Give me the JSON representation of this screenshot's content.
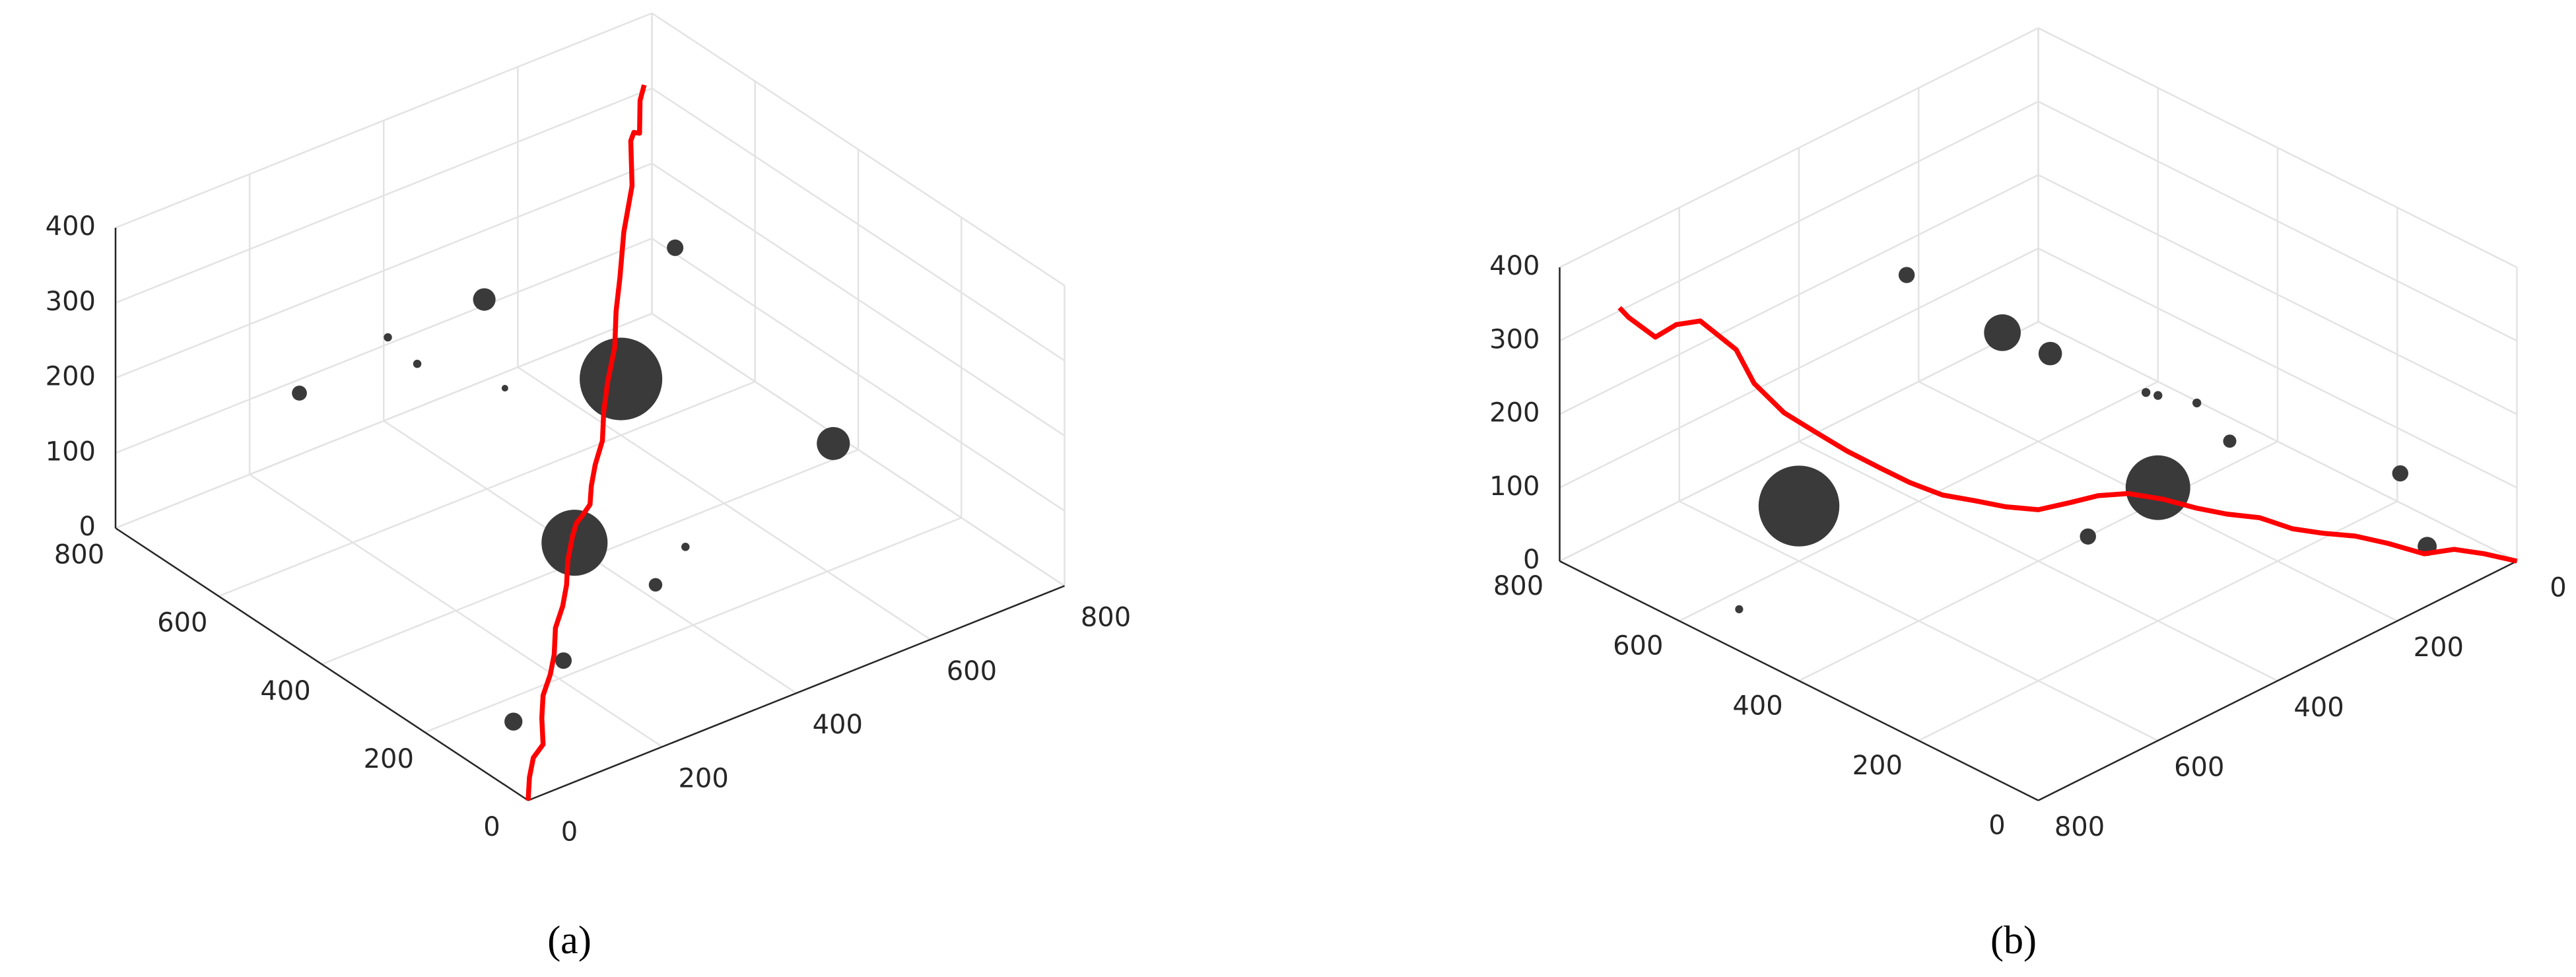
{
  "chart_data": [
    {
      "type": "scatter3d",
      "caption": "(a)",
      "xlim": [
        0,
        800
      ],
      "ylim": [
        0,
        800
      ],
      "zlim": [
        0,
        400
      ],
      "xticks": [
        0,
        200,
        400,
        600,
        800
      ],
      "yticks": [
        0,
        200,
        400,
        600,
        800
      ],
      "zticks": [
        0,
        100,
        200,
        300,
        400
      ],
      "spheres": {
        "color": "#3a3a3a",
        "x": [
          650,
          400,
          310,
          300,
          255,
          400,
          569,
          450,
          390,
          145,
          55,
          600,
          300
        ],
        "y": [
          560,
          605,
          675,
          605,
          775,
          565,
          148,
          280,
          260,
          120,
          100,
          600,
          300
        ],
        "z": [
          250,
          250,
          200,
          200,
          100,
          150,
          205,
          50,
          30,
          80,
          40,
          75,
          100
        ],
        "sizes": [
          11,
          15,
          5.5,
          5.5,
          10,
          4.4,
          22,
          5.5,
          9,
          11,
          12,
          55,
          44
        ]
      },
      "path": {
        "color": "#ff0000",
        "x": [
          0,
          25,
          50,
          80,
          105,
          130,
          160,
          185,
          210,
          240,
          265,
          290,
          320,
          345,
          370,
          400,
          425,
          450,
          480,
          505,
          530,
          560,
          585,
          610,
          635,
          655,
          680,
          700,
          720,
          740,
          750
        ],
        "y": [
          0,
          30,
          55,
          75,
          110,
          140,
          165,
          190,
          220,
          245,
          270,
          300,
          330,
          355,
          375,
          400,
          430,
          455,
          480,
          510,
          535,
          560,
          590,
          615,
          640,
          650,
          685,
          705,
          720,
          745,
          750
        ],
        "z": [
          0,
          8,
          14,
          12,
          22,
          30,
          36,
          42,
          55,
          62,
          70,
          80,
          88,
          85,
          78,
          70,
          72,
          80,
          90,
          105,
          125,
          150,
          175,
          200,
          240,
          290,
          325,
          320,
          305,
          330,
          345
        ]
      }
    },
    {
      "type": "scatter3d",
      "caption": "(b)",
      "xlim": [
        0,
        800
      ],
      "ylim": [
        0,
        800
      ],
      "zlim": [
        0,
        400
      ],
      "xticks": [
        0,
        200,
        400,
        600,
        800
      ],
      "yticks": [
        0,
        200,
        400,
        600,
        800
      ],
      "zticks": [
        0,
        100,
        200,
        300,
        400
      ],
      "spheres": {
        "color": "#3a3a3a",
        "x": [
          400,
          355,
          350,
          335,
          330,
          310,
          285,
          135,
          569,
          75,
          755,
          600,
          300
        ],
        "y": [
          620,
          505,
          430,
          285,
          270,
          225,
          195,
          60,
          148,
          75,
          545,
          600,
          300
        ],
        "z": [
          300,
          250,
          250,
          250,
          250,
          250,
          200,
          150,
          205,
          20,
          20,
          75,
          100
        ],
        "sizes": [
          11,
          25,
          16,
          6,
          6,
          6,
          9,
          11,
          11,
          13,
          5.5,
          55,
          44
        ]
      },
      "path": {
        "color": "#ff0000",
        "x": [
          0,
          25,
          50,
          80,
          105,
          130,
          160,
          185,
          210,
          240,
          265,
          290,
          320,
          345,
          370,
          400,
          425,
          450,
          480,
          505,
          530,
          560,
          585,
          610,
          635,
          655,
          680,
          700,
          720,
          740,
          750
        ],
        "y": [
          0,
          30,
          55,
          75,
          110,
          140,
          165,
          190,
          220,
          245,
          270,
          300,
          330,
          355,
          375,
          400,
          430,
          455,
          480,
          510,
          535,
          560,
          590,
          615,
          640,
          650,
          685,
          705,
          720,
          745,
          750
        ],
        "z": [
          0,
          8,
          14,
          12,
          22,
          30,
          36,
          42,
          55,
          62,
          70,
          80,
          88,
          85,
          78,
          70,
          72,
          80,
          90,
          105,
          125,
          150,
          175,
          200,
          240,
          290,
          325,
          320,
          305,
          330,
          345
        ]
      }
    }
  ]
}
